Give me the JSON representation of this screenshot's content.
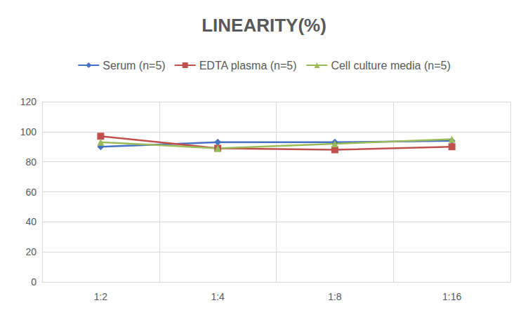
{
  "chart_data": {
    "type": "line",
    "title": "LINEARITY(%)",
    "categories": [
      "1:2",
      "1:4",
      "1:8",
      "1:16"
    ],
    "series": [
      {
        "name": "Serum (n=5)",
        "color": "#4472c4",
        "marker": "diamond",
        "values": [
          90,
          93,
          93,
          94
        ]
      },
      {
        "name": "EDTA plasma (n=5)",
        "color": "#c0504d",
        "marker": "square",
        "values": [
          97,
          89,
          88,
          90
        ]
      },
      {
        "name": "Cell culture media (n=5)",
        "color": "#9bbb59",
        "marker": "triangle",
        "values": [
          93,
          89,
          92,
          95
        ]
      }
    ],
    "ylim": [
      0,
      120
    ],
    "yticks": [
      0,
      20,
      40,
      60,
      80,
      100,
      120
    ],
    "grid": true,
    "legend": "top"
  }
}
